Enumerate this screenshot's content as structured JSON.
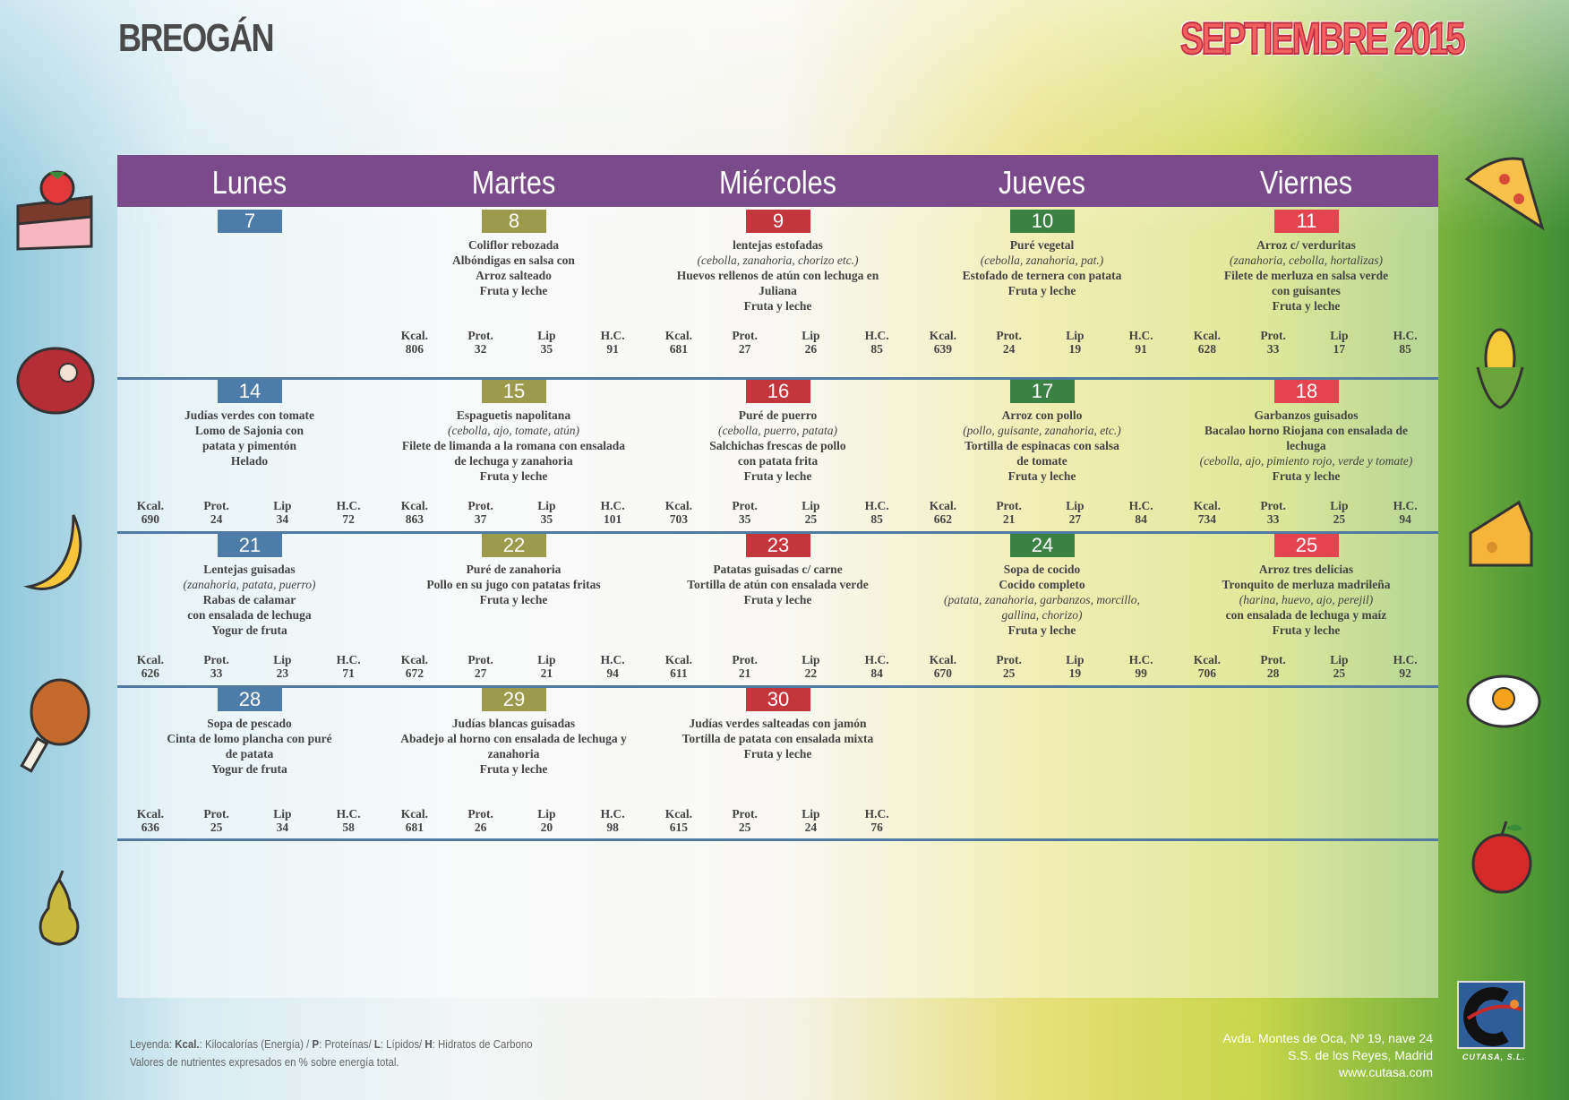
{
  "brand": "BREOGÁN",
  "month": "SEPTIEMBRE 2015",
  "weekdays": [
    "Lunes",
    "Martes",
    "Miércoles",
    "Jueves",
    "Viernes"
  ],
  "colors": {
    "lunes": "#4d7ca8",
    "martes": "#9c9a4c",
    "miercoles": "#c2363c",
    "jueves": "#3b8242",
    "viernes": "#e4444f",
    "header": "#7b4a8a"
  },
  "labels": {
    "kcal": "Kcal.",
    "prot": "Prot.",
    "lip": "Lip",
    "hc": "H.C."
  },
  "weeks": [
    [
      {
        "day": "7",
        "lines": [],
        "nutr": null
      },
      {
        "day": "8",
        "lines": [
          {
            "t": "Coliflor rebozada"
          },
          {
            "t": "Albóndigas en salsa con"
          },
          {
            "t": "Arroz salteado"
          },
          {
            "t": "Fruta y leche"
          }
        ],
        "nutr": {
          "kcal": "806",
          "prot": "32",
          "lip": "35",
          "hc": "91"
        }
      },
      {
        "day": "9",
        "lines": [
          {
            "t": "lentejas estofadas"
          },
          {
            "t": "(cebolla, zanahoria, chorizo etc.)",
            "i": true
          },
          {
            "t": "Huevos rellenos de atún con lechuga en"
          },
          {
            "t": "Juliana"
          },
          {
            "t": "Fruta y leche"
          }
        ],
        "nutr": {
          "kcal": "681",
          "prot": "27",
          "lip": "26",
          "hc": "85"
        }
      },
      {
        "day": "10",
        "lines": [
          {
            "t": "Puré vegetal"
          },
          {
            "t": "(cebolla, zanahoria, pat.)",
            "i": true
          },
          {
            "t": "Estofado de ternera con patata"
          },
          {
            "t": "Fruta y leche"
          }
        ],
        "nutr": {
          "kcal": "639",
          "prot": "24",
          "lip": "19",
          "hc": "91"
        }
      },
      {
        "day": "11",
        "lines": [
          {
            "t": "Arroz c/ verduritas"
          },
          {
            "t": "(zanahoria, cebolla, hortalizas)",
            "i": true
          },
          {
            "t": "Filete de merluza en salsa verde"
          },
          {
            "t": "con guisantes"
          },
          {
            "t": "Fruta y leche"
          }
        ],
        "nutr": {
          "kcal": "628",
          "prot": "33",
          "lip": "17",
          "hc": "85"
        }
      }
    ],
    [
      {
        "day": "14",
        "lines": [
          {
            "t": "Judías verdes con tomate"
          },
          {
            "t": "Lomo de Sajonia con"
          },
          {
            "t": "patata y pimentón"
          },
          {
            "t": "Helado"
          }
        ],
        "nutr": {
          "kcal": "690",
          "prot": "24",
          "lip": "34",
          "hc": "72"
        }
      },
      {
        "day": "15",
        "lines": [
          {
            "t": "Espaguetis napolitana"
          },
          {
            "t": "(cebolla, ajo, tomate, atún)",
            "i": true
          },
          {
            "t": "Filete de limanda a la romana con ensalada"
          },
          {
            "t": "de lechuga y zanahoria"
          },
          {
            "t": "Fruta y leche"
          }
        ],
        "nutr": {
          "kcal": "863",
          "prot": "37",
          "lip": "35",
          "hc": "101"
        }
      },
      {
        "day": "16",
        "lines": [
          {
            "t": "Puré de puerro"
          },
          {
            "t": "(cebolla, puerro, patata)",
            "i": true
          },
          {
            "t": "Salchichas frescas de pollo"
          },
          {
            "t": "con patata frita"
          },
          {
            "t": "Fruta y leche"
          }
        ],
        "nutr": {
          "kcal": "703",
          "prot": "35",
          "lip": "25",
          "hc": "85"
        }
      },
      {
        "day": "17",
        "lines": [
          {
            "t": "Arroz con pollo"
          },
          {
            "t": "(pollo, guisante, zanahoria, etc.)",
            "i": true
          },
          {
            "t": "Tortilla de espinacas con salsa"
          },
          {
            "t": "de tomate"
          },
          {
            "t": "Fruta y leche"
          }
        ],
        "nutr": {
          "kcal": "662",
          "prot": "21",
          "lip": "27",
          "hc": "84"
        }
      },
      {
        "day": "18",
        "lines": [
          {
            "t": "Garbanzos guisados"
          },
          {
            "t": "Bacalao horno Riojana con ensalada de"
          },
          {
            "t": "lechuga"
          },
          {
            "t": "(cebolla, ajo, pimiento rojo, verde y tomate)",
            "i": true
          },
          {
            "t": "Fruta y leche"
          }
        ],
        "nutr": {
          "kcal": "734",
          "prot": "33",
          "lip": "25",
          "hc": "94"
        }
      }
    ],
    [
      {
        "day": "21",
        "lines": [
          {
            "t": "Lentejas guisadas"
          },
          {
            "t": "(zanahoria, patata, puerro)",
            "i": true
          },
          {
            "t": "Rabas de calamar"
          },
          {
            "t": "con ensalada de lechuga"
          },
          {
            "t": "Yogur de fruta"
          }
        ],
        "nutr": {
          "kcal": "626",
          "prot": "33",
          "lip": "23",
          "hc": "71"
        }
      },
      {
        "day": "22",
        "lines": [
          {
            "t": "Puré de zanahoria"
          },
          {
            "t": "Pollo en su jugo con patatas fritas"
          },
          {
            "t": "Fruta y leche"
          }
        ],
        "nutr": {
          "kcal": "672",
          "prot": "27",
          "lip": "21",
          "hc": "94"
        }
      },
      {
        "day": "23",
        "lines": [
          {
            "t": "Patatas guisadas c/ carne"
          },
          {
            "t": "Tortilla de atún con ensalada verde"
          },
          {
            "t": "Fruta y leche"
          }
        ],
        "nutr": {
          "kcal": "611",
          "prot": "21",
          "lip": "22",
          "hc": "84"
        }
      },
      {
        "day": "24",
        "lines": [
          {
            "t": "Sopa de cocido"
          },
          {
            "t": "Cocido completo"
          },
          {
            "t": "(patata, zanahoria, garbanzos, morcillo,",
            "i": true
          },
          {
            "t": "gallina, chorizo)",
            "i": true
          },
          {
            "t": "Fruta y leche"
          }
        ],
        "nutr": {
          "kcal": "670",
          "prot": "25",
          "lip": "19",
          "hc": "99"
        }
      },
      {
        "day": "25",
        "lines": [
          {
            "t": "Arroz tres delicias"
          },
          {
            "t": "Tronquito de merluza madrileña"
          },
          {
            "t": "(harina, huevo, ajo, perejil)",
            "i": true
          },
          {
            "t": "con ensalada de lechuga y maíz"
          },
          {
            "t": "Fruta y leche"
          }
        ],
        "nutr": {
          "kcal": "706",
          "prot": "28",
          "lip": "25",
          "hc": "92"
        }
      }
    ],
    [
      {
        "day": "28",
        "lines": [
          {
            "t": "Sopa de pescado"
          },
          {
            "t": "Cinta de lomo plancha con puré"
          },
          {
            "t": "de patata"
          },
          {
            "t": "Yogur de fruta"
          }
        ],
        "nutr": {
          "kcal": "636",
          "prot": "25",
          "lip": "34",
          "hc": "58"
        }
      },
      {
        "day": "29",
        "lines": [
          {
            "t": "Judías blancas guisadas"
          },
          {
            "t": "Abadejo al horno con ensalada de lechuga y"
          },
          {
            "t": "zanahoria"
          },
          {
            "t": "Fruta y leche"
          }
        ],
        "nutr": {
          "kcal": "681",
          "prot": "26",
          "lip": "20",
          "hc": "98"
        }
      },
      {
        "day": "30",
        "lines": [
          {
            "t": "Judías verdes salteadas con jamón"
          },
          {
            "t": "Tortilla de patata con ensalada mixta"
          },
          {
            "t": "Fruta y leche"
          }
        ],
        "nutr": {
          "kcal": "615",
          "prot": "25",
          "lip": "24",
          "hc": "76"
        }
      },
      null,
      null
    ]
  ],
  "legend": {
    "prefix": "Leyenda: ",
    "k": "Kcal.",
    "k_t": ": Kilocalorías (Energía) / ",
    "p": "P",
    "p_t": ": Proteínas/ ",
    "l": "L",
    "l_t": ": Lípidos/ ",
    "h": "H",
    "h_t": ": Hidratos de Carbono",
    "line2": "Valores de nutrientes expresados en % sobre energía total."
  },
  "address": {
    "line1": "Avda. Montes de Oca, Nº 19, nave 24",
    "line2": "S.S. de los Reyes, Madrid",
    "web": "www.cutasa.com"
  },
  "company": "CUTASA, S.L."
}
